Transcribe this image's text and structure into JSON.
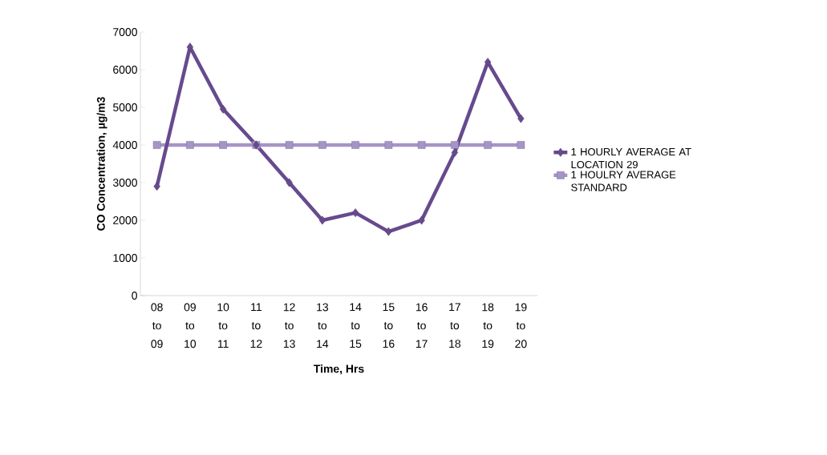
{
  "chart_data": {
    "type": "line",
    "xlabel": "Time, Hrs",
    "ylabel": "CO Concentration, µg/m3",
    "categories": [
      "08 to 09",
      "09 to 10",
      "10 to 11",
      "11 to 12",
      "12 to 13",
      "13 to 14",
      "14 to 15",
      "15 to 16",
      "16 to 17",
      "17 to 18",
      "18 to 19",
      "19 to 20"
    ],
    "series": [
      {
        "name": "1 HOURLY AVERAGE AT LOCATION 29",
        "color": "#674a8e",
        "marker": "diamond",
        "values": [
          2900,
          6600,
          4950,
          4000,
          3000,
          2000,
          2200,
          1700,
          2000,
          3800,
          6200,
          4700
        ]
      },
      {
        "name": "1 HOULRY AVERAGE STANDARD",
        "color": "#a594c6",
        "marker": "square",
        "values": [
          4000,
          4000,
          4000,
          4000,
          4000,
          4000,
          4000,
          4000,
          4000,
          4000,
          4000,
          4000
        ]
      }
    ],
    "ylim": [
      0,
      7000
    ],
    "yticks": [
      0,
      1000,
      2000,
      3000,
      4000,
      5000,
      6000,
      7000
    ],
    "legend": "right",
    "grid": false,
    "line_style": "solid"
  }
}
